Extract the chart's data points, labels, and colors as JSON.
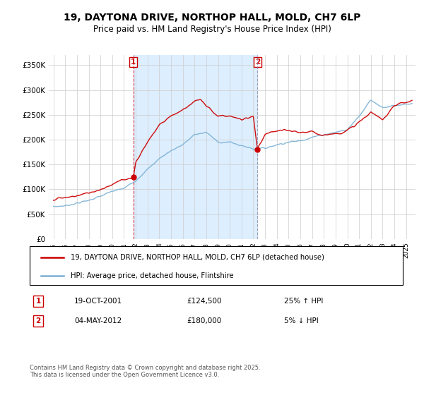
{
  "title": "19, DAYTONA DRIVE, NORTHOP HALL, MOLD, CH7 6LP",
  "subtitle": "Price paid vs. HM Land Registry's House Price Index (HPI)",
  "ylabel_ticks": [
    "£0",
    "£50K",
    "£100K",
    "£150K",
    "£200K",
    "£250K",
    "£300K",
    "£350K"
  ],
  "ytick_values": [
    0,
    50000,
    100000,
    150000,
    200000,
    250000,
    300000,
    350000
  ],
  "ylim": [
    0,
    370000
  ],
  "sale1": {
    "date": "19-OCT-2001",
    "price": 124500,
    "hpi_diff": "25% ↑ HPI",
    "year": 2001.8
  },
  "sale2": {
    "date": "04-MAY-2012",
    "price": 180000,
    "hpi_diff": "5% ↓ HPI",
    "year": 2012.35
  },
  "legend_red": "19, DAYTONA DRIVE, NORTHOP HALL, MOLD, CH7 6LP (detached house)",
  "legend_blue": "HPI: Average price, detached house, Flintshire",
  "footer": "Contains HM Land Registry data © Crown copyright and database right 2025.\nThis data is licensed under the Open Government Licence v3.0.",
  "red_color": "#cc0000",
  "blue_color": "#7ab0d4",
  "vline1_color": "#cc0000",
  "vline2_color": "#8888aa",
  "shade_color": "#ddeeff",
  "grid_color": "#cccccc",
  "bg_color": "#ffffff",
  "hpi_x": [
    1995,
    1996,
    1997,
    1998,
    1999,
    2000,
    2001,
    2002,
    2003,
    2004,
    2005,
    2006,
    2007,
    2008,
    2009,
    2010,
    2011,
    2012,
    2013,
    2014,
    2015,
    2016,
    2017,
    2018,
    2019,
    2020,
    2021,
    2022,
    2023,
    2024,
    2025.5
  ],
  "hpi_y": [
    65000,
    67000,
    72000,
    78000,
    86000,
    96000,
    102000,
    118000,
    140000,
    162000,
    178000,
    190000,
    210000,
    215000,
    195000,
    195000,
    188000,
    182000,
    183000,
    190000,
    195000,
    198000,
    205000,
    210000,
    215000,
    220000,
    248000,
    280000,
    265000,
    268000,
    272000
  ],
  "prop_x": [
    1995,
    1996,
    1997,
    1998,
    1999,
    2000,
    2001,
    2001.8,
    2002,
    2003,
    2004,
    2005,
    2006,
    2007,
    2007.5,
    2008,
    2009,
    2010,
    2011,
    2012.0,
    2012.35,
    2013,
    2014,
    2015,
    2016,
    2017,
    2018,
    2019,
    2020,
    2021,
    2022,
    2023,
    2024,
    2025.5
  ],
  "prop_y": [
    80000,
    83000,
    87000,
    93000,
    100000,
    110000,
    120000,
    124500,
    155000,
    195000,
    230000,
    248000,
    260000,
    278000,
    280000,
    268000,
    248000,
    248000,
    240000,
    247000,
    180000,
    210000,
    218000,
    218000,
    215000,
    215000,
    210000,
    212000,
    218000,
    235000,
    255000,
    240000,
    270000,
    278000
  ]
}
